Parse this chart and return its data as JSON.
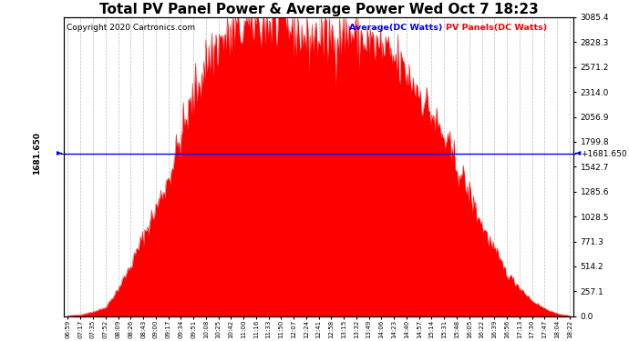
{
  "title": "Total PV Panel Power & Average Power Wed Oct 7 18:23",
  "copyright": "Copyright 2020 Cartronics.com",
  "legend_average": "Average(DC Watts)",
  "legend_pv": "PV Panels(DC Watts)",
  "average_value": 1681.65,
  "ymin": 0.0,
  "ymax": 3085.4,
  "yticks_right": [
    3085.4,
    2828.3,
    2571.2,
    2314.0,
    2056.9,
    1799.8,
    1542.7,
    1285.6,
    1028.5,
    771.3,
    514.2,
    257.1,
    0.0
  ],
  "bg_color": "#ffffff",
  "fill_color": "#ff0000",
  "avg_line_color": "#0000ff",
  "grid_color": "#bbbbbb",
  "title_fontsize": 11,
  "copyright_fontsize": 6.5,
  "xtick_fontsize": 5.0,
  "ytick_fontsize": 6.5,
  "time_labels": [
    "06:59",
    "07:17",
    "07:35",
    "07:52",
    "08:09",
    "08:26",
    "08:43",
    "09:00",
    "09:17",
    "09:34",
    "09:51",
    "10:08",
    "10:25",
    "10:42",
    "11:00",
    "11:16",
    "11:33",
    "11:50",
    "12:07",
    "12:24",
    "12:41",
    "12:58",
    "13:15",
    "13:32",
    "13:49",
    "14:06",
    "14:23",
    "14:40",
    "14:57",
    "15:14",
    "15:31",
    "15:48",
    "16:05",
    "16:22",
    "16:39",
    "16:56",
    "17:13",
    "17:30",
    "17:47",
    "18:04",
    "18:22"
  ],
  "pv_values": [
    5,
    15,
    45,
    90,
    280,
    520,
    820,
    1100,
    1420,
    1850,
    2250,
    2620,
    2820,
    2900,
    2980,
    3050,
    3020,
    3010,
    2980,
    2850,
    2900,
    2870,
    2960,
    2880,
    2820,
    2750,
    2640,
    2500,
    2320,
    2080,
    1820,
    1560,
    1260,
    940,
    680,
    440,
    300,
    160,
    80,
    25,
    5
  ],
  "noise_seed": 42,
  "noise_amplitude": 180
}
